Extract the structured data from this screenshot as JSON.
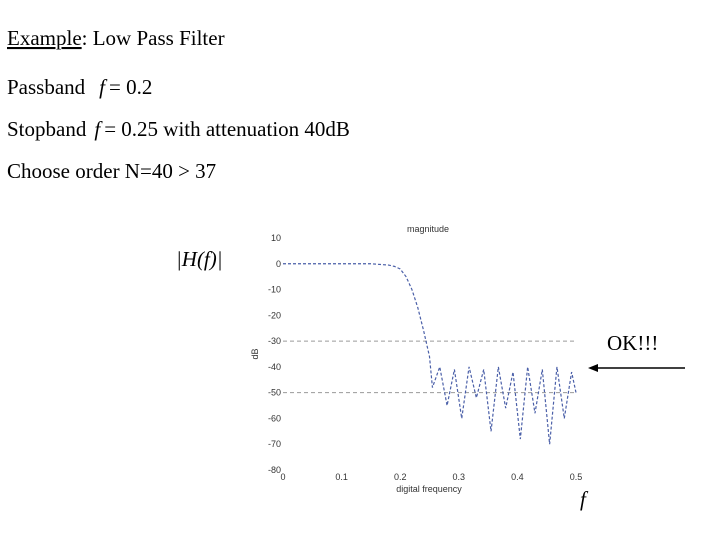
{
  "slide": {
    "heading": {
      "label": "Example",
      "rest": ": Low Pass Filter"
    },
    "passband": {
      "label": "Passband",
      "symbol": "f",
      "rest": "= 0.2"
    },
    "stopband": {
      "label": "Stopband",
      "symbol": "f",
      "rest": "= 0.25  with attenuation 40dB"
    },
    "order": "Choose order N=40 > 37",
    "magnitude_symbol": "|H(f)|",
    "ok_note": "OK!!!",
    "frequency_symbol": "f"
  },
  "chart_data": {
    "type": "line",
    "title": "magnitude",
    "x_label": "digital frequency",
    "y_label": "dB",
    "xlim": [
      0,
      0.5
    ],
    "ylim": [
      -80,
      10
    ],
    "xticks": [
      0,
      0.1,
      0.2,
      0.3,
      0.4,
      0.5
    ],
    "yticks": [
      10,
      0,
      -10,
      -20,
      -30,
      -40,
      -50,
      -60,
      -70,
      -80
    ],
    "reference_lines": [
      -30,
      -50
    ],
    "grid": false,
    "color": "#4a5fa8",
    "reference_color": "#9a9a9a",
    "x": [
      0,
      0.05,
      0.1,
      0.15,
      0.18,
      0.19,
      0.2,
      0.21,
      0.22,
      0.23,
      0.24,
      0.25,
      0.255,
      0.2675,
      0.28,
      0.2925,
      0.305,
      0.3175,
      0.33,
      0.3425,
      0.355,
      0.3675,
      0.38,
      0.3925,
      0.405,
      0.4175,
      0.43,
      0.4425,
      0.455,
      0.4675,
      0.48,
      0.4925,
      0.5
    ],
    "values": [
      0,
      0,
      0,
      0,
      -0.5,
      -1,
      -2,
      -5,
      -10,
      -17,
      -26,
      -36,
      -48,
      -40,
      -55,
      -41,
      -60,
      -40,
      -52,
      -41,
      -65,
      -40,
      -56,
      -42,
      -68,
      -40,
      -58,
      -41,
      -70,
      -40,
      -60,
      -42,
      -50
    ]
  }
}
